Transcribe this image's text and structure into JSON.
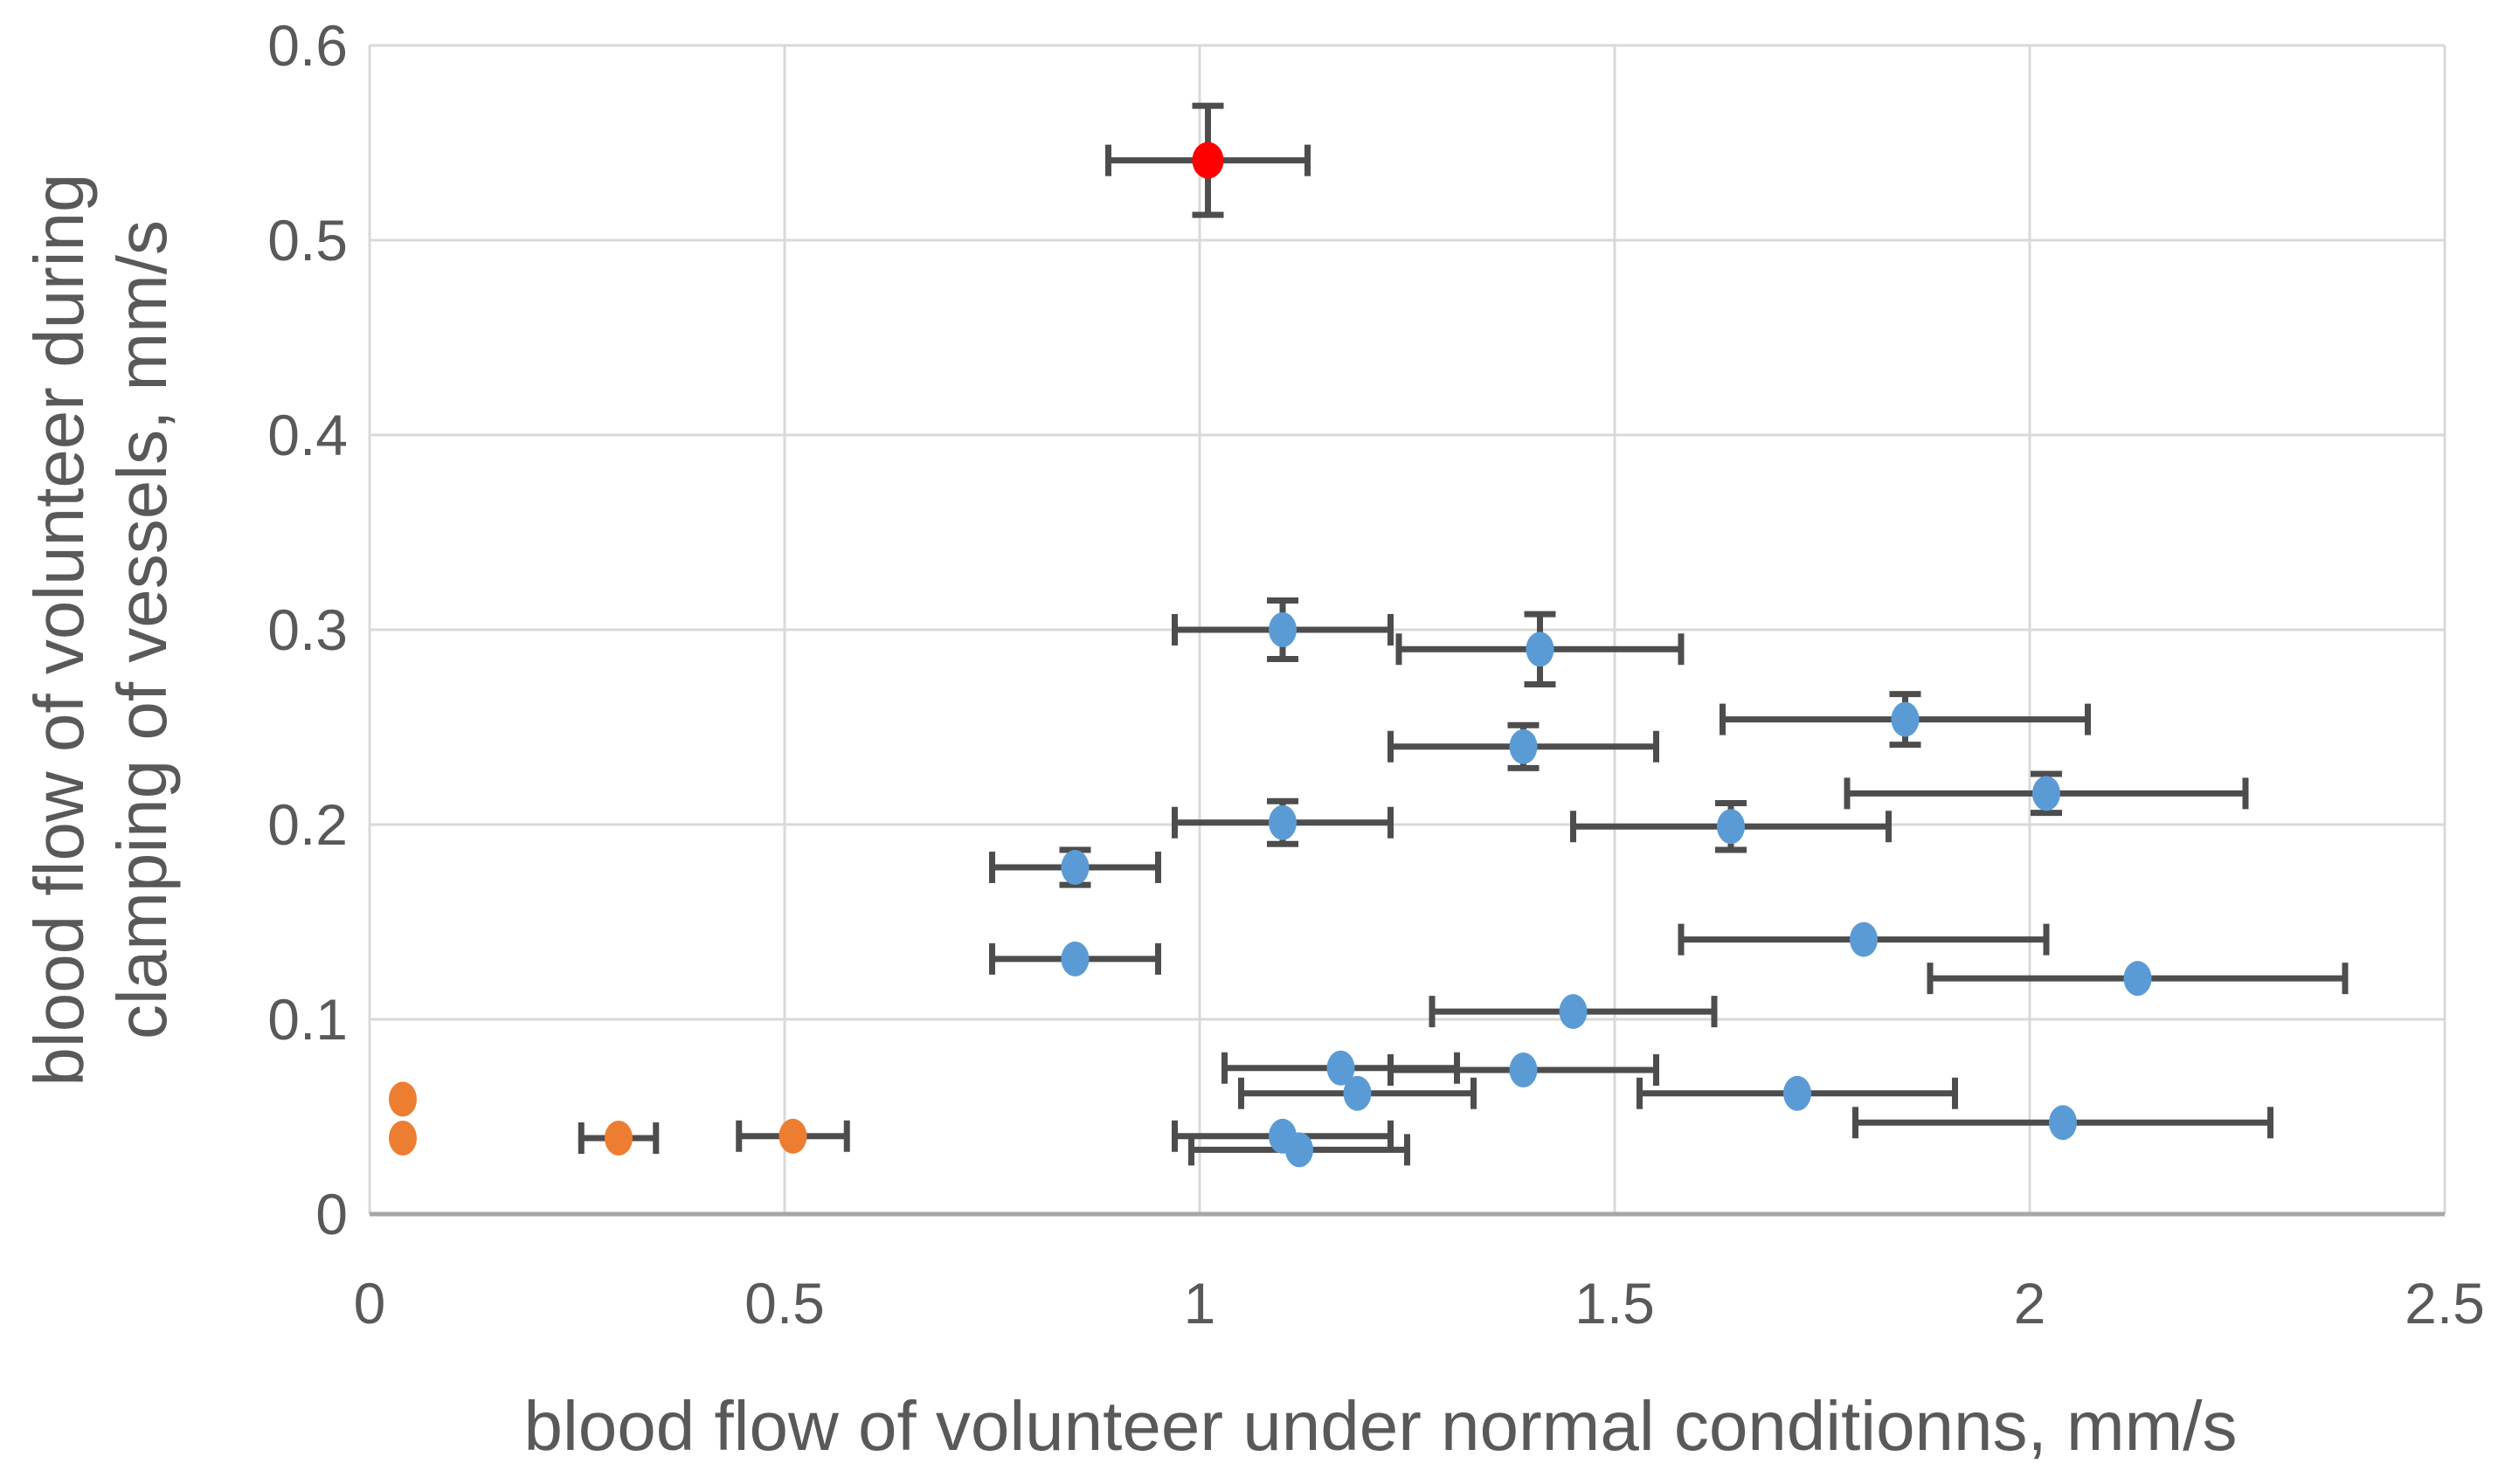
{
  "page": {
    "background": "#FFFFFF"
  },
  "chart_data": {
    "type": "scatter",
    "title": "",
    "xlabel": "blood flow of volunteer under normal conditionns, mm/s",
    "ylabel": "blood flow of volunteer during clamping of vessels, mm/s",
    "ylabel_lines": [
      "blood flow of volunteer during",
      "clamping of vessels, mm/s"
    ],
    "xlim": [
      0,
      2.5
    ],
    "ylim": [
      0,
      0.6
    ],
    "xticks": [
      0,
      0.5,
      1,
      1.5,
      2,
      2.5
    ],
    "xtick_labels": [
      "0",
      "0.5",
      "1",
      "1.5",
      "2",
      "2.5"
    ],
    "yticks": [
      0,
      0.1,
      0.2,
      0.3,
      0.4,
      0.5,
      0.6
    ],
    "ytick_labels": [
      "0",
      "0.1",
      "0.2",
      "0.3",
      "0.4",
      "0.5",
      "0.6"
    ],
    "grid": true,
    "legend": false,
    "colors": {
      "blue_series": "#5B9BD5",
      "orange_series": "#ED7D31",
      "red_series": "#FF0000",
      "error_bar": "#4D4D4D",
      "gridline": "#D9D9D9",
      "axis_line": "#A6A6A6",
      "text": "#595959"
    },
    "series": [
      {
        "name": "blue-points",
        "color": "#5B9BD5",
        "marker": "ellipse",
        "points": [
          {
            "x": 1.1,
            "y": 0.3,
            "xerr": 0.13,
            "yerr": 0.015
          },
          {
            "x": 1.41,
            "y": 0.29,
            "xerr": 0.17,
            "yerr": 0.018
          },
          {
            "x": 1.85,
            "y": 0.254,
            "xerr": 0.22,
            "yerr": 0.013
          },
          {
            "x": 1.39,
            "y": 0.24,
            "xerr": 0.16,
            "yerr": 0.011
          },
          {
            "x": 2.02,
            "y": 0.216,
            "xerr": 0.24,
            "yerr": 0.01
          },
          {
            "x": 1.1,
            "y": 0.201,
            "xerr": 0.13,
            "yerr": 0.011
          },
          {
            "x": 1.64,
            "y": 0.199,
            "xerr": 0.19,
            "yerr": 0.012
          },
          {
            "x": 0.85,
            "y": 0.178,
            "xerr": 0.1,
            "yerr": 0.009
          },
          {
            "x": 1.8,
            "y": 0.141,
            "xerr": 0.22,
            "yerr": 0
          },
          {
            "x": 0.85,
            "y": 0.131,
            "xerr": 0.1,
            "yerr": 0
          },
          {
            "x": 2.13,
            "y": 0.121,
            "xerr": 0.25,
            "yerr": 0
          },
          {
            "x": 1.45,
            "y": 0.104,
            "xerr": 0.17,
            "yerr": 0
          },
          {
            "x": 1.39,
            "y": 0.074,
            "xerr": 0.16,
            "yerr": 0
          },
          {
            "x": 1.17,
            "y": 0.075,
            "xerr": 0.14,
            "yerr": 0
          },
          {
            "x": 1.19,
            "y": 0.062,
            "xerr": 0.14,
            "yerr": 0
          },
          {
            "x": 1.72,
            "y": 0.062,
            "xerr": 0.19,
            "yerr": 0
          },
          {
            "x": 2.04,
            "y": 0.047,
            "xerr": 0.25,
            "yerr": 0
          },
          {
            "x": 1.1,
            "y": 0.04,
            "xerr": 0.13,
            "yerr": 0
          },
          {
            "x": 1.12,
            "y": 0.033,
            "xerr": 0.13,
            "yerr": 0
          }
        ]
      },
      {
        "name": "orange-points",
        "color": "#ED7D31",
        "marker": "ellipse",
        "points": [
          {
            "x": 0.04,
            "y": 0.059,
            "xerr": 0,
            "yerr": 0
          },
          {
            "x": 0.04,
            "y": 0.039,
            "xerr": 0,
            "yerr": 0
          },
          {
            "x": 0.3,
            "y": 0.039,
            "xerr": 0.045,
            "yerr": 0
          },
          {
            "x": 0.51,
            "y": 0.04,
            "xerr": 0.065,
            "yerr": 0
          }
        ]
      },
      {
        "name": "red-point",
        "color": "#FF0000",
        "marker": "ellipse",
        "points": [
          {
            "x": 1.01,
            "y": 0.541,
            "xerr": 0.12,
            "yerr": 0.028
          }
        ]
      }
    ]
  }
}
